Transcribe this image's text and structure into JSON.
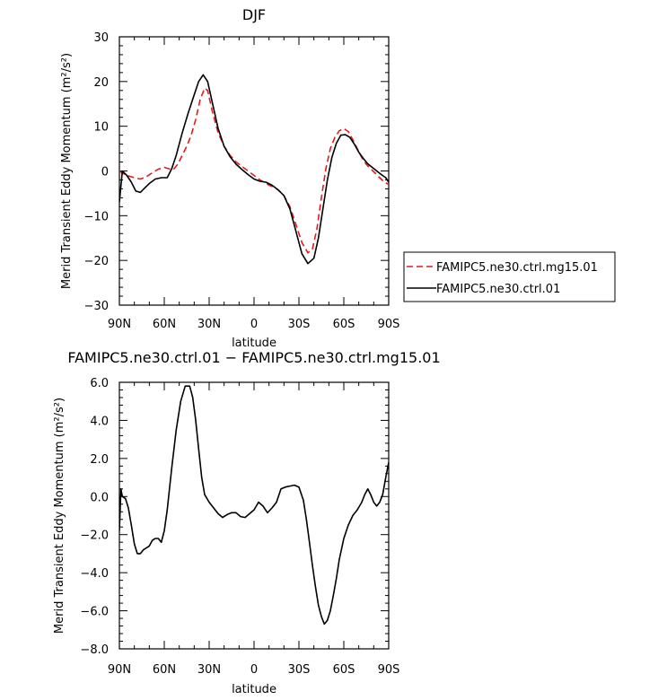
{
  "chart_data": [
    {
      "type": "line",
      "title": "DJF",
      "xlabel": "latitude",
      "ylabel": "Merid Transient Eddy Momentum (m²/s²)",
      "xlim": [
        90,
        -90
      ],
      "ylim": [
        -30,
        30
      ],
      "xticks": [
        90,
        60,
        30,
        0,
        -30,
        -60,
        -90
      ],
      "xtick_labels": [
        "90N",
        "60N",
        "30N",
        "0",
        "30S",
        "60S",
        "90S"
      ],
      "yticks": [
        -30,
        -20,
        -10,
        0,
        10,
        20,
        30
      ],
      "ytick_labels": [
        "−30",
        "−20",
        "−10",
        "0",
        "10",
        "20",
        "30"
      ],
      "legend_position": "outside-right",
      "series": [
        {
          "name": "FAMIPC5.ne30.ctrl.mg15.01",
          "color": "#e8191e",
          "dash": "dashed",
          "x": [
            90,
            88,
            85,
            80,
            76,
            72,
            68,
            64,
            60,
            57,
            54,
            51,
            48,
            45,
            42,
            39,
            36,
            33,
            31,
            28,
            24,
            20,
            16,
            12,
            8,
            4,
            0,
            -4,
            -8,
            -12,
            -16,
            -20,
            -24,
            -28,
            -32,
            -36,
            -39,
            -42,
            -45,
            -48,
            -51,
            -54,
            -57,
            -60,
            -63,
            -66,
            -69,
            -72,
            -75,
            -78,
            -81,
            -84,
            -87,
            -90
          ],
          "values": [
            0,
            -0.5,
            -1,
            -1.5,
            -1.8,
            -1.3,
            -0.4,
            0.4,
            0.8,
            0.5,
            0.3,
            1.5,
            3.5,
            5.5,
            8,
            11.5,
            16,
            18.5,
            18,
            13.5,
            8.5,
            5.5,
            3.5,
            2,
            1,
            0,
            -1,
            -2,
            -2.8,
            -3.5,
            -4.2,
            -5.5,
            -8,
            -12,
            -16,
            -18.3,
            -17.5,
            -13,
            -6,
            0.5,
            5,
            7.5,
            9,
            9.5,
            8.8,
            7,
            5,
            3,
            1.5,
            0.5,
            -0.5,
            -1.5,
            -2.5,
            -3
          ]
        },
        {
          "name": "FAMIPC5.ne30.ctrl.01",
          "color": "#000000",
          "dash": "solid",
          "x": [
            90,
            88,
            85,
            82,
            79,
            76,
            73,
            70,
            66,
            62,
            58,
            55,
            52,
            48,
            44,
            40,
            37,
            34,
            31,
            28,
            24,
            20,
            16,
            12,
            8,
            4,
            0,
            -4,
            -8,
            -12,
            -16,
            -20,
            -24,
            -28,
            -32,
            -36,
            -40,
            -43,
            -46,
            -49,
            -52,
            -55,
            -58,
            -61,
            -64,
            -67,
            -70,
            -73,
            -76,
            -79,
            -82,
            -85,
            -88,
            -90
          ],
          "values": [
            -7,
            0,
            -1,
            -2.5,
            -4.5,
            -4.8,
            -3.8,
            -2.8,
            -1.8,
            -1.5,
            -1.5,
            0.5,
            3.5,
            8.5,
            13,
            17,
            20,
            21.5,
            20,
            15.5,
            9.5,
            5.5,
            3.2,
            1.5,
            0.3,
            -0.8,
            -1.8,
            -2.3,
            -2.5,
            -3.2,
            -4.2,
            -5.5,
            -8.5,
            -13.5,
            -18.5,
            -20.7,
            -19.5,
            -15,
            -8.5,
            -2,
            3,
            6.2,
            8,
            8.1,
            7.5,
            6,
            4.2,
            2.8,
            1.6,
            0.8,
            0,
            -0.8,
            -1.5,
            -2.5
          ]
        }
      ]
    },
    {
      "type": "line",
      "title": "FAMIPC5.ne30.ctrl.01 − FAMIPC5.ne30.ctrl.mg15.01",
      "xlabel": "latitude",
      "ylabel": "Merid Transient Eddy Momentum (m²/s²)",
      "xlim": [
        90,
        -90
      ],
      "ylim": [
        -8,
        6
      ],
      "xticks": [
        90,
        60,
        30,
        0,
        -30,
        -60,
        -90
      ],
      "xtick_labels": [
        "90N",
        "60N",
        "30N",
        "0",
        "30S",
        "60S",
        "90S"
      ],
      "yticks": [
        -8,
        -6,
        -4,
        -2,
        0,
        2,
        4,
        6
      ],
      "ytick_labels": [
        "−8.0",
        "−6.0",
        "−4.0",
        "−2.0",
        "0.0",
        "2.0",
        "4.0",
        "6.0"
      ],
      "series": [
        {
          "color": "#000000",
          "dash": "solid",
          "x": [
            90,
            89,
            88,
            86,
            84,
            82,
            80,
            78,
            76,
            74,
            72,
            70,
            68,
            66,
            64,
            62,
            60,
            58,
            55,
            52,
            49,
            46,
            43,
            41,
            39,
            37,
            35,
            33,
            30,
            27,
            24,
            21,
            18,
            15,
            12,
            9,
            6,
            3,
            0,
            -3,
            -6,
            -9,
            -12,
            -15,
            -18,
            -21,
            -24,
            -27,
            -30,
            -33,
            -35,
            -37,
            -39,
            -41,
            -43,
            -45,
            -47,
            -49,
            -51,
            -53,
            -55,
            -57,
            -60,
            -63,
            -66,
            -69,
            -72,
            -74,
            -76,
            -78,
            -80,
            -82,
            -84,
            -86,
            -88,
            -90
          ],
          "values": [
            -1.8,
            0.4,
            0,
            -0.1,
            -0.6,
            -1.5,
            -2.5,
            -3.0,
            -3.0,
            -2.8,
            -2.7,
            -2.6,
            -2.3,
            -2.2,
            -2.2,
            -2.4,
            -1.8,
            -0.7,
            1.5,
            3.5,
            5.0,
            5.8,
            5.8,
            5.2,
            4.0,
            2.5,
            1.0,
            0.1,
            -0.3,
            -0.6,
            -0.9,
            -1.1,
            -0.95,
            -0.85,
            -0.85,
            -1.05,
            -1.1,
            -0.9,
            -0.7,
            -0.3,
            -0.5,
            -0.85,
            -0.6,
            -0.3,
            0.4,
            0.5,
            0.55,
            0.6,
            0.5,
            -0.2,
            -1.2,
            -2.4,
            -3.6,
            -4.7,
            -5.7,
            -6.3,
            -6.7,
            -6.5,
            -6.0,
            -5.2,
            -4.3,
            -3.3,
            -2.2,
            -1.5,
            -1.0,
            -0.7,
            -0.3,
            0.1,
            0.4,
            0.1,
            -0.3,
            -0.5,
            -0.3,
            0.1,
            1.0,
            1.8
          ]
        }
      ]
    }
  ]
}
